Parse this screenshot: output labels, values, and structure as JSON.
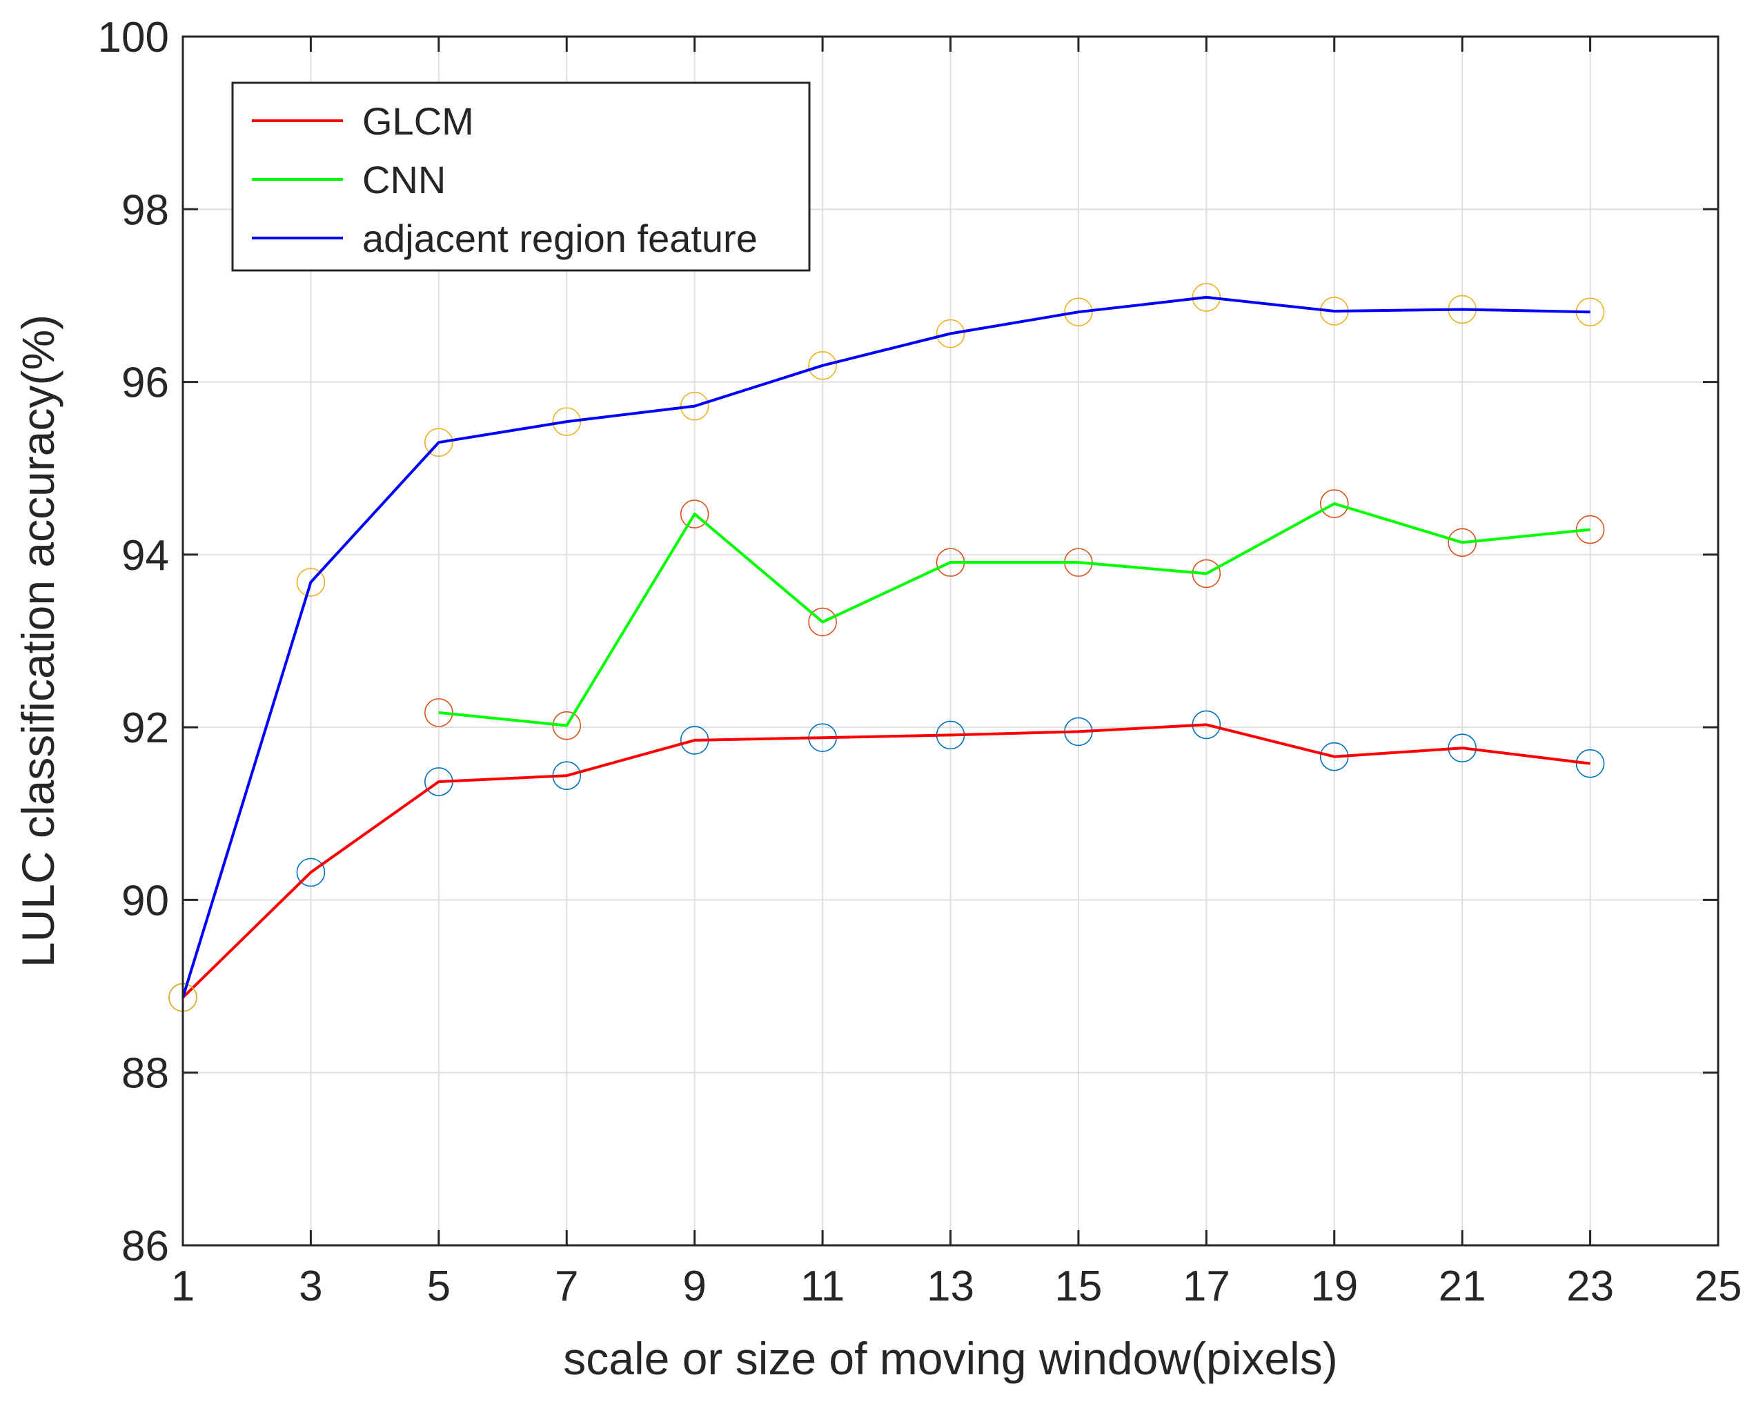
{
  "chart_data": {
    "type": "line",
    "title": "",
    "xlabel": "scale or size of moving window(pixels)",
    "ylabel": "LULC classification accuracy(%)",
    "xlim": [
      1,
      25
    ],
    "ylim": [
      86,
      100
    ],
    "xticks": [
      1,
      3,
      5,
      7,
      9,
      11,
      13,
      15,
      17,
      19,
      21,
      23,
      25
    ],
    "yticks": [
      86,
      88,
      90,
      92,
      94,
      96,
      98,
      100
    ],
    "grid": true,
    "legend_position": "top-left",
    "series": [
      {
        "name": "GLCM",
        "color": "#ff0000",
        "marker_color": "#0072bd",
        "x": [
          1,
          3,
          5,
          7,
          9,
          11,
          13,
          15,
          17,
          19,
          21,
          23
        ],
        "y": [
          88.87,
          90.32,
          91.37,
          91.44,
          91.85,
          91.88,
          91.91,
          91.95,
          92.03,
          91.66,
          91.76,
          91.58
        ]
      },
      {
        "name": "CNN",
        "color": "#00ff00",
        "marker_color": "#d95319",
        "x": [
          5,
          7,
          9,
          11,
          13,
          15,
          17,
          19,
          21,
          23
        ],
        "y": [
          92.17,
          92.02,
          94.47,
          93.22,
          93.91,
          93.91,
          93.78,
          94.59,
          94.14,
          94.29
        ]
      },
      {
        "name": "adjacent region feature",
        "color": "#0000ff",
        "marker_color": "#edb120",
        "x": [
          1,
          3,
          5,
          7,
          9,
          11,
          13,
          15,
          17,
          19,
          21,
          23
        ],
        "y": [
          88.87,
          93.68,
          95.3,
          95.54,
          95.72,
          96.19,
          96.56,
          96.81,
          96.98,
          96.82,
          96.84,
          96.81
        ]
      }
    ]
  }
}
